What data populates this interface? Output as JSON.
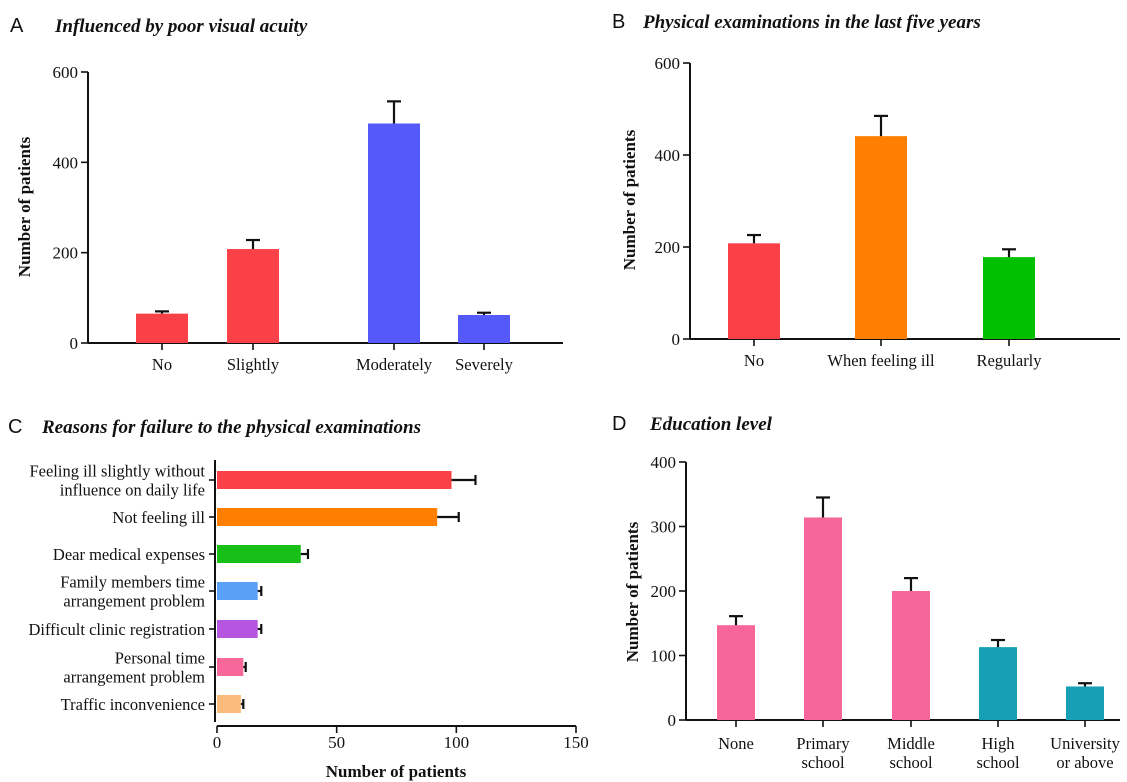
{
  "chart_data": [
    {
      "panel": "A",
      "type": "bar",
      "orientation": "vertical",
      "title": "Influenced by poor visual acuity",
      "xlabel": "",
      "ylabel": "Number of patients",
      "ylim": [
        0,
        600
      ],
      "yticks": [
        0,
        200,
        400,
        600
      ],
      "grid": false,
      "categories": [
        "No",
        "Slightly",
        "Moderately",
        "Severely"
      ],
      "values": [
        65,
        208,
        486,
        62
      ],
      "errors": [
        5,
        20,
        49,
        5
      ],
      "colors": [
        "#fa4148",
        "#fa4148",
        "#5659fa",
        "#5659fa"
      ]
    },
    {
      "panel": "B",
      "type": "bar",
      "orientation": "vertical",
      "title": "Physical examinations in the last five years",
      "xlabel": "",
      "ylabel": "Number of patients",
      "ylim": [
        0,
        600
      ],
      "yticks": [
        0,
        200,
        400,
        600
      ],
      "grid": false,
      "categories": [
        "No",
        "When feeling ill",
        "Regularly"
      ],
      "values": [
        208,
        441,
        178
      ],
      "errors": [
        18,
        44,
        17
      ],
      "colors": [
        "#fa4148",
        "#ff8000",
        "#00c000"
      ]
    },
    {
      "panel": "C",
      "type": "bar",
      "orientation": "horizontal",
      "title": "Reasons for failure to the physical examinations",
      "xlabel": "Number of patients",
      "ylabel": "",
      "xlim": [
        0,
        150
      ],
      "xticks": [
        0,
        50,
        100,
        150
      ],
      "grid": false,
      "categories": [
        [
          "Feeling ill slightly without",
          "influence on daily life"
        ],
        [
          "Not feeling ill"
        ],
        [
          "Dear medical expenses"
        ],
        [
          "Family members time",
          "arrangement problem"
        ],
        [
          "Difficult clinic registration"
        ],
        [
          "Personal time",
          "arrangement problem"
        ],
        [
          "Traffic inconvenience"
        ]
      ],
      "values": [
        98,
        92,
        35,
        17,
        17,
        11,
        10
      ],
      "errors": [
        10,
        9,
        3,
        1.5,
        1.5,
        1,
        1
      ],
      "colors": [
        "#fa4148",
        "#ff8000",
        "#17bf17",
        "#5aa0f7",
        "#b656e0",
        "#f7679a",
        "#fcbb7a"
      ]
    },
    {
      "panel": "D",
      "type": "bar",
      "orientation": "vertical",
      "title": "Education level",
      "xlabel": "",
      "ylabel": "Number of patients",
      "ylim": [
        0,
        400
      ],
      "yticks": [
        0,
        100,
        200,
        300,
        400
      ],
      "grid": false,
      "categories": [
        [
          "None"
        ],
        [
          "Primary",
          "school"
        ],
        [
          "Middle",
          "school"
        ],
        [
          "High",
          "school"
        ],
        [
          "University",
          "or above"
        ]
      ],
      "values": [
        147,
        314,
        200,
        113,
        52
      ],
      "errors": [
        14,
        31,
        20,
        11,
        5
      ],
      "colors": [
        "#f7669a",
        "#f7669a",
        "#f7669a",
        "#17a0b5",
        "#17a0b5"
      ]
    }
  ]
}
